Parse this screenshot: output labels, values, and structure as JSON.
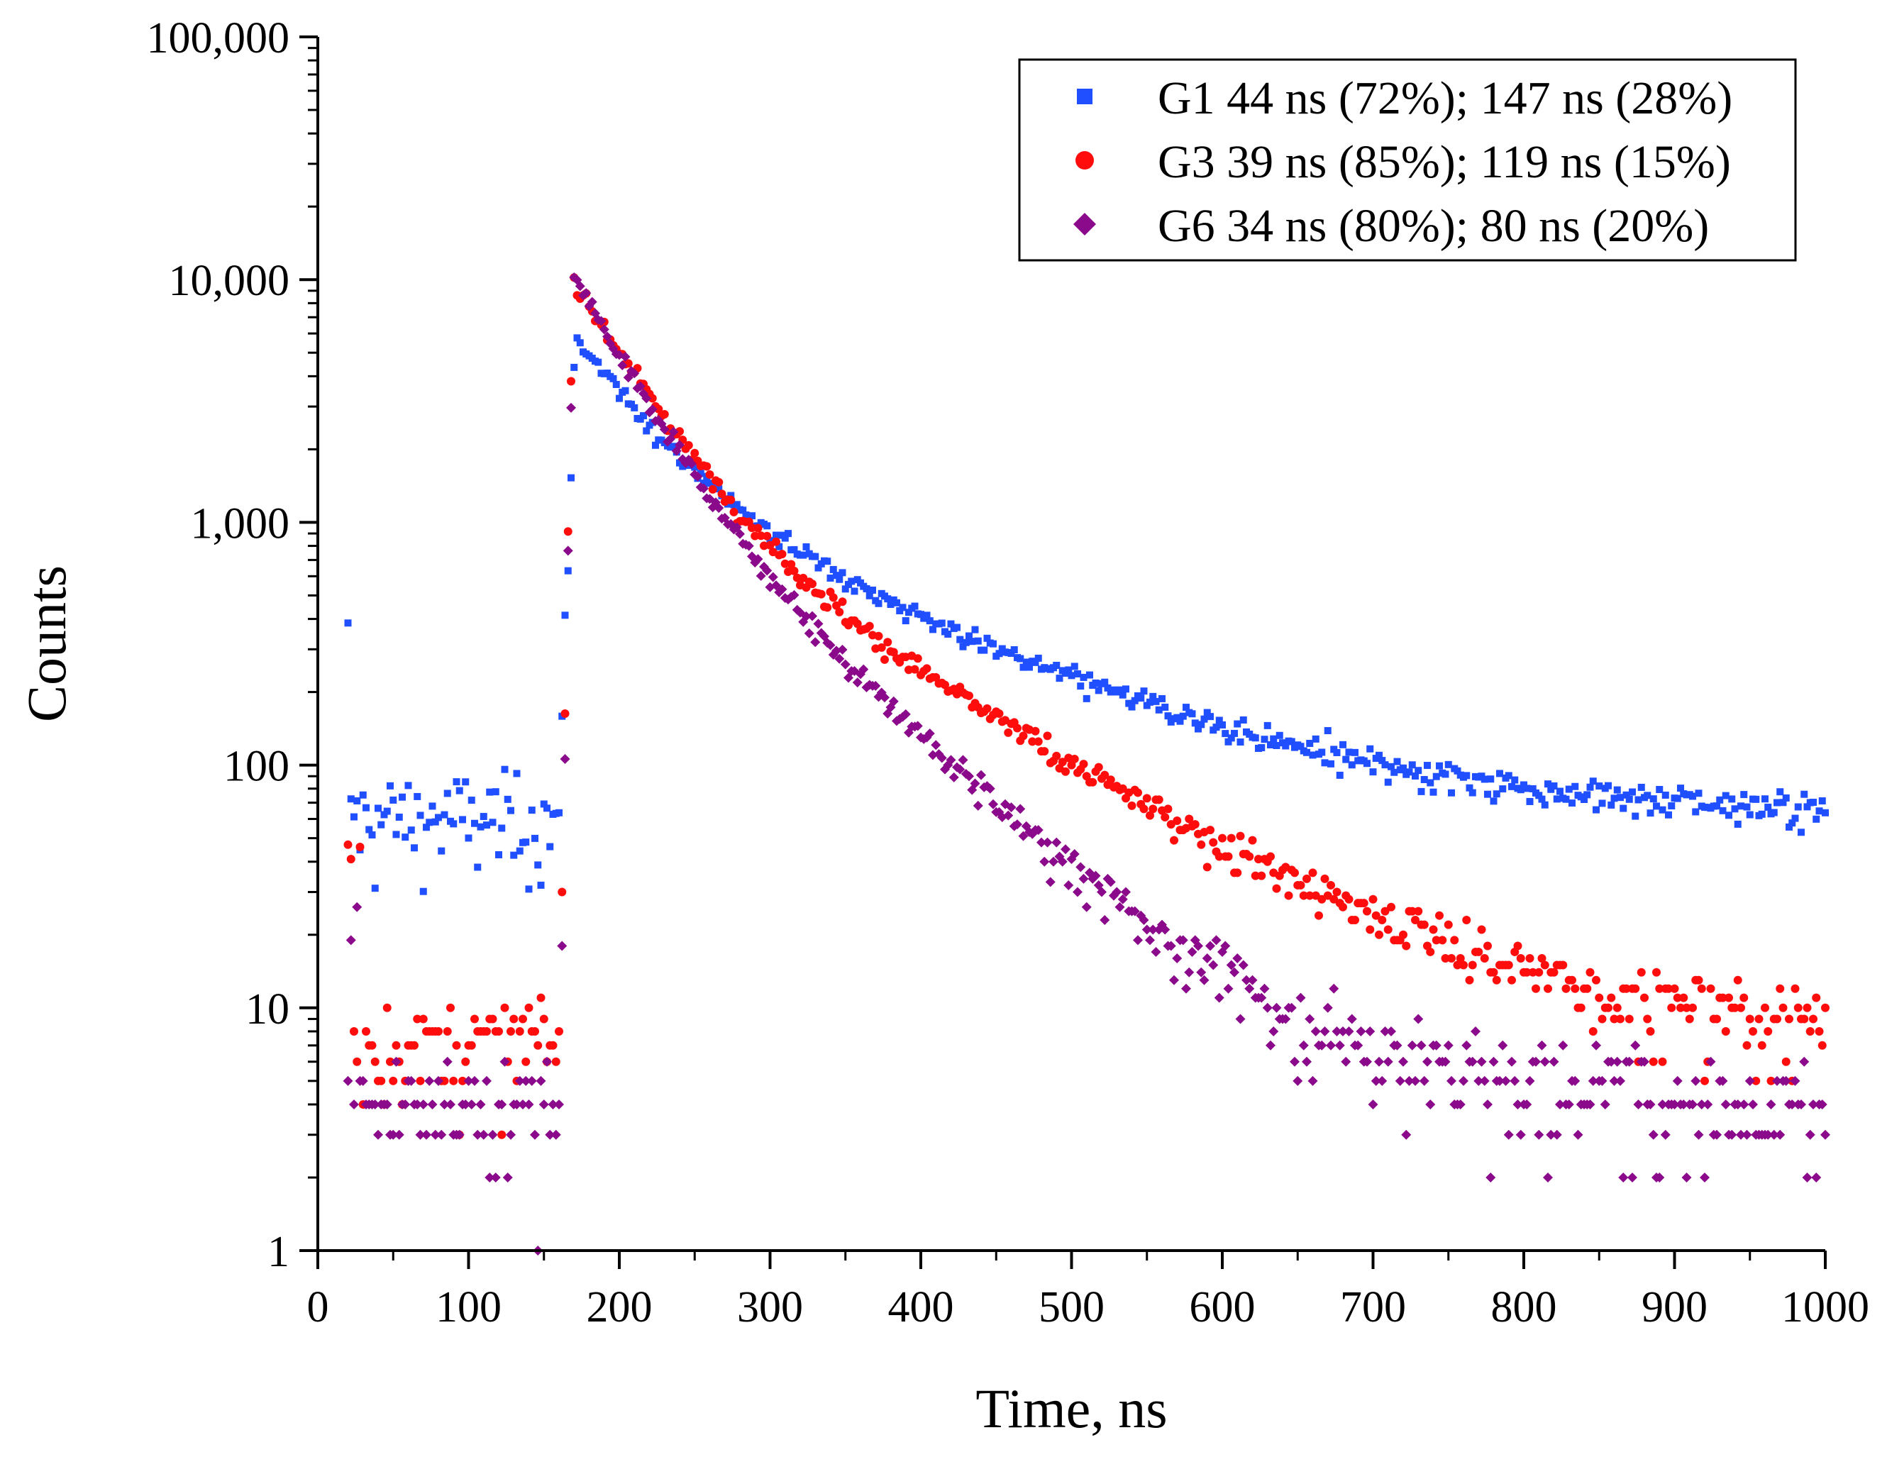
{
  "chart_data": {
    "type": "scatter",
    "title": "",
    "xlabel": "Time, ns",
    "ylabel": "Counts",
    "x_range": [
      0,
      1000
    ],
    "y_range": [
      1,
      100000
    ],
    "y_scale": "log",
    "x_ticks": [
      "0",
      "100",
      "200",
      "300",
      "400",
      "500",
      "600",
      "700",
      "800",
      "900",
      "1000"
    ],
    "y_ticks": [
      "1",
      "10",
      "100",
      "1,000",
      "10,000",
      "100,000"
    ],
    "grid": false,
    "legend_position": "top-right",
    "series": [
      {
        "name": "G1 44 ns (72%); 147 ns (28%)",
        "marker": "square",
        "color": "#1f4fff",
        "x_start": 20,
        "x_step": 2,
        "background_counts": 60,
        "rise_time": 160,
        "peak_time": 172,
        "peak_counts": 10000,
        "lifetimes_ns": [
          44,
          147
        ],
        "amplitude_fractions": [
          0.72,
          0.28
        ],
        "tail_counts": 60
      },
      {
        "name": "G3 39 ns (85%); 119 ns (15%)",
        "marker": "circle",
        "color": "#ff0d0d",
        "x_start": 20,
        "x_step": 2,
        "background_counts": 7,
        "rise_time": 160,
        "peak_time": 170,
        "peak_counts": 18000,
        "lifetimes_ns": [
          39,
          119
        ],
        "amplitude_fractions": [
          0.85,
          0.15
        ],
        "tail_counts": 7
      },
      {
        "name": "G6 34 ns (80%); 80 ns (20%)",
        "marker": "diamond",
        "color": "#8b0a8b",
        "x_start": 20,
        "x_step": 2,
        "background_counts": 4,
        "rise_time": 160,
        "peak_time": 170,
        "peak_counts": 19000,
        "lifetimes_ns": [
          34,
          80
        ],
        "amplitude_fractions": [
          0.8,
          0.2
        ],
        "tail_counts": 4
      }
    ]
  }
}
